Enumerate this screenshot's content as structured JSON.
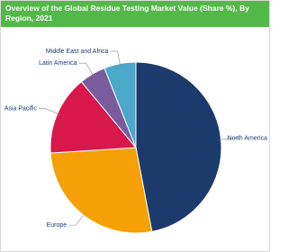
{
  "chart_data": {
    "type": "pie",
    "title": "Overview of the Global Residue Testing Market Value (Share %), By Region, 2021",
    "categories": [
      "North America",
      "Europe",
      "Asia Pacific",
      "Latin America",
      "Middle East and Africa"
    ],
    "values": [
      47,
      27,
      15,
      5,
      6
    ],
    "colors": [
      "#1c3a6c",
      "#f5a006",
      "#d8174a",
      "#7a5c9c",
      "#4aa8c8"
    ]
  }
}
